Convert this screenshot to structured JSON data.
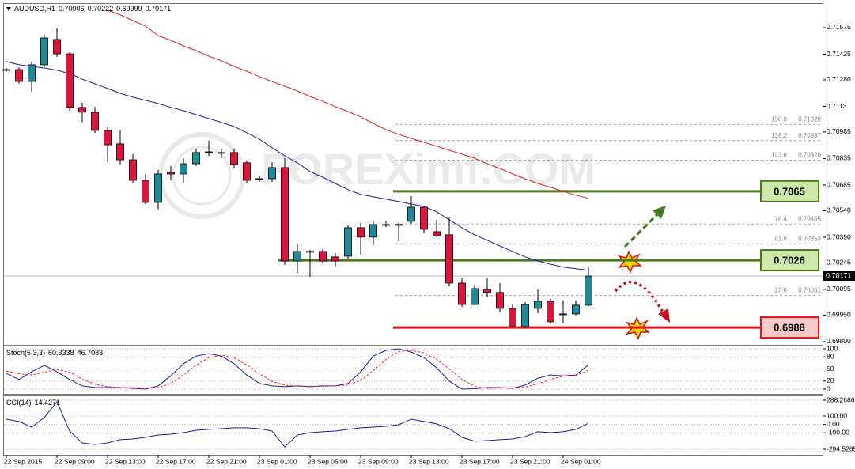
{
  "chart_data": [
    {
      "type": "candlestick",
      "symbol": "AUDUSD,H1",
      "ohlc_readout": [
        0.70006,
        0.70222,
        0.69999,
        0.70171
      ],
      "watermark": "FOREXimf.COM",
      "categories": [
        "22 Sep 2015",
        null,
        null,
        null,
        "22 Sep 09:00",
        null,
        null,
        null,
        "22 Sep 13:00",
        null,
        null,
        null,
        "22 Sep 17:00",
        null,
        null,
        null,
        "22 Sep 21:00",
        null,
        null,
        null,
        "23 Sep 01:00",
        null,
        null,
        null,
        "23 Sep 05:00",
        null,
        null,
        null,
        "23 Sep 09:00",
        null,
        null,
        null,
        "23 Sep 13:00",
        null,
        null,
        null,
        "23 Sep 17:00",
        null,
        null,
        null,
        "23 Sep 21:00",
        null,
        null,
        null,
        "24 Sep 01:00",
        null,
        null
      ],
      "open": [
        0.71338,
        0.71338,
        0.71271,
        0.71365,
        0.71508,
        0.71427,
        0.71124,
        0.71097,
        0.70994,
        0.70918,
        0.70828,
        0.70712,
        0.70587,
        0.70757,
        0.70748,
        0.70806,
        0.70869,
        0.70869,
        0.70869,
        0.70811,
        0.70721,
        0.70721,
        0.70784,
        0.70256,
        0.70306,
        0.7031,
        0.70279,
        0.70283,
        0.70444,
        0.70391,
        0.70462,
        0.70458,
        0.7048,
        0.7056,
        0.70422,
        0.70404,
        0.70131,
        0.7001,
        0.70095,
        0.70078,
        0.69988,
        0.69885,
        0.69988,
        0.70028,
        0.69952,
        0.69957,
        0.70006
      ],
      "high": [
        0.71347,
        0.71351,
        0.71383,
        0.71535,
        0.71571,
        0.71436,
        0.7115,
        0.71128,
        0.71016,
        0.70994,
        0.7086,
        0.70748,
        0.7077,
        0.70793,
        0.70837,
        0.70891,
        0.70936,
        0.70891,
        0.70891,
        0.70824,
        0.70739,
        0.70815,
        0.70837,
        0.70355,
        0.70319,
        0.70324,
        0.70301,
        0.70458,
        0.70471,
        0.7048,
        0.7048,
        0.70471,
        0.70623,
        0.70569,
        0.70489,
        0.70502,
        0.70158,
        0.70122,
        0.70158,
        0.70131,
        0.7001,
        0.70024,
        0.70095,
        0.70042,
        0.70033,
        0.70033,
        0.70222
      ],
      "low": [
        0.71325,
        0.71258,
        0.71213,
        0.71351,
        0.7141,
        0.71106,
        0.71039,
        0.7098,
        0.70815,
        0.70802,
        0.70694,
        0.70578,
        0.70547,
        0.70712,
        0.70694,
        0.70793,
        0.70851,
        0.70837,
        0.70779,
        0.70694,
        0.70703,
        0.70703,
        0.70234,
        0.70189,
        0.70167,
        0.70243,
        0.70225,
        0.70265,
        0.70292,
        0.70346,
        0.70449,
        0.70368,
        0.70466,
        0.70413,
        0.70391,
        0.70113,
        0.69997,
        0.70006,
        0.70055,
        0.69966,
        0.69881,
        0.69877,
        0.69961,
        0.69899,
        0.69908,
        0.69948,
        0.69999
      ],
      "close": [
        0.71334,
        0.71271,
        0.71365,
        0.71517,
        0.71427,
        0.71124,
        0.71097,
        0.70994,
        0.70913,
        0.70828,
        0.70712,
        0.70587,
        0.70748,
        0.70748,
        0.70806,
        0.70869,
        0.70873,
        0.70865,
        0.70802,
        0.70712,
        0.70717,
        0.70784,
        0.70256,
        0.7031,
        0.7031,
        0.70256,
        0.70256,
        0.70444,
        0.70391,
        0.70462,
        0.70458,
        0.70462,
        0.7056,
        0.70435,
        0.70399,
        0.70131,
        0.7001,
        0.701,
        0.70078,
        0.69988,
        0.69885,
        0.7001,
        0.70028,
        0.69912,
        0.69957,
        0.70006,
        0.70171
      ],
      "up_color": "#1f8a9c",
      "down_color": "#dc143c",
      "overlays": [
        {
          "color": "#1c1caa",
          "values": [
            0.71383,
            0.71365,
            0.71356,
            0.71347,
            0.71334,
            0.71316,
            0.71284,
            0.71258,
            0.71231,
            0.71204,
            0.71182,
            0.71164,
            0.71146,
            0.71124,
            0.71106,
            0.71083,
            0.71061,
            0.71039,
            0.71016,
            0.70981,
            0.70945,
            0.70896,
            0.70851,
            0.70811,
            0.70761,
            0.7073,
            0.70694,
            0.70659,
            0.70632,
            0.70619,
            0.70605,
            0.70592,
            0.70578,
            0.70565,
            0.70534,
            0.70489,
            0.70444,
            0.70404,
            0.70373,
            0.70341,
            0.7031,
            0.70279,
            0.70256,
            0.70238,
            0.70221,
            0.70212,
            0.70203
          ]
        },
        {
          "color": "#e8231e",
          "values": [
            null,
            null,
            null,
            null,
            null,
            null,
            null,
            null,
            0.71673,
            0.71647,
            0.71615,
            0.71584,
            0.7153,
            0.71503,
            0.71472,
            0.71445,
            0.71414,
            0.71387,
            0.71356,
            0.71329,
            0.71298,
            0.71271,
            0.71244,
            0.71217,
            0.71186,
            0.71159,
            0.71128,
            0.71101,
            0.7107,
            0.71034,
            0.70998,
            0.70972,
            0.70949,
            0.70927,
            0.70905,
            0.70882,
            0.7086,
            0.70837,
            0.70806,
            0.70779,
            0.70748,
            0.70721,
            0.70694,
            0.70672,
            0.7065,
            0.70628,
            0.7061
          ]
        }
      ],
      "ylim": [
        0.69782,
        0.71709
      ],
      "yticks": [
        0.71575,
        0.71425,
        {
          "value": 0.7128,
          "label": "0.71280"
        },
        0.7113,
        0.70985,
        0.70835,
        0.70685,
        {
          "value": 0.7054,
          "label": "0.70540"
        },
        {
          "value": 0.7039,
          "label": "0.70390"
        },
        0.70245,
        0.70095,
        {
          "value": 0.6995,
          "label": "0.69950"
        },
        {
          "value": 0.698,
          "label": "0.69800"
        }
      ],
      "fibonacci": [
        {
          "level": "150.0",
          "price": 0.71028
        },
        {
          "level": "138.2",
          "price": 0.70937
        },
        {
          "level": "123.6",
          "price": 0.70826
        },
        {
          "level": "76.4",
          "price": 0.70465
        },
        {
          "level": "61.8",
          "price": 0.70353
        },
        {
          "level": "23.6",
          "price": 0.70061
        }
      ],
      "levels": [
        {
          "value": 0.7065,
          "color": "#4a7a1c",
          "fill": "#cde8a8"
        },
        {
          "value": 0.7026,
          "color": "#4a7a1c",
          "fill": "#cde8a8"
        },
        {
          "value": 0.6988,
          "color": "#e0141e",
          "fill": "#f7c9c9"
        }
      ]
    },
    {
      "type": "line",
      "title": "Stoch(5,3,3)",
      "readout": [
        60.3338,
        46.7083
      ],
      "ylim": [
        0,
        100
      ],
      "yticks": [
        100,
        80,
        50,
        20,
        0
      ],
      "series": [
        {
          "color": "#1c1caa",
          "values": [
            39,
            24,
            43,
            59,
            43,
            24,
            8,
            4,
            4,
            4,
            2,
            0,
            8,
            33,
            63,
            82,
            88,
            82,
            63,
            35,
            14,
            8,
            6,
            8,
            6,
            8,
            8,
            14,
            43,
            82,
            96,
            100,
            92,
            78,
            53,
            20,
            0,
            1,
            4,
            4,
            2,
            10,
            27,
            35,
            33,
            35,
            60.3338
          ]
        },
        {
          "color": "#ff2020",
          "dashed": true,
          "values": [
            45,
            38,
            35,
            42,
            48,
            42,
            25,
            12,
            6,
            4,
            4,
            3,
            4,
            14,
            35,
            60,
            78,
            84,
            78,
            60,
            38,
            19,
            10,
            7,
            7,
            7,
            8,
            10,
            22,
            46,
            74,
            93,
            96,
            90,
            74,
            50,
            24,
            7,
            2,
            3,
            3,
            5,
            13,
            24,
            32,
            34,
            46.7083
          ]
        }
      ]
    },
    {
      "type": "line",
      "title": "CCI(14)",
      "readout": [
        14.4271
      ],
      "ylim": [
        -294.5265,
        288.2686
      ],
      "yticks": [
        288.2686,
        {
          "value": 100,
          "label": "100.00"
        },
        {
          "value": 0,
          "label": "0.00"
        },
        {
          "value": -100,
          "label": "-100.00"
        },
        -294.5265
      ],
      "series": [
        {
          "color": "#1c1caa",
          "values": [
            63,
            35,
            -31,
            82,
            270,
            -78,
            -219,
            -238,
            -219,
            -181,
            -172,
            -153,
            -125,
            -116,
            -97,
            -69,
            -59,
            -50,
            -40,
            -40,
            -50,
            -78,
            -266,
            -125,
            -97,
            -87,
            -78,
            -59,
            -40,
            -31,
            -22,
            -3,
            63,
            35,
            7,
            -50,
            -153,
            -200,
            -191,
            -181,
            -172,
            -144,
            -87,
            -97,
            -87,
            -59,
            14.4271
          ]
        }
      ]
    }
  ]
}
